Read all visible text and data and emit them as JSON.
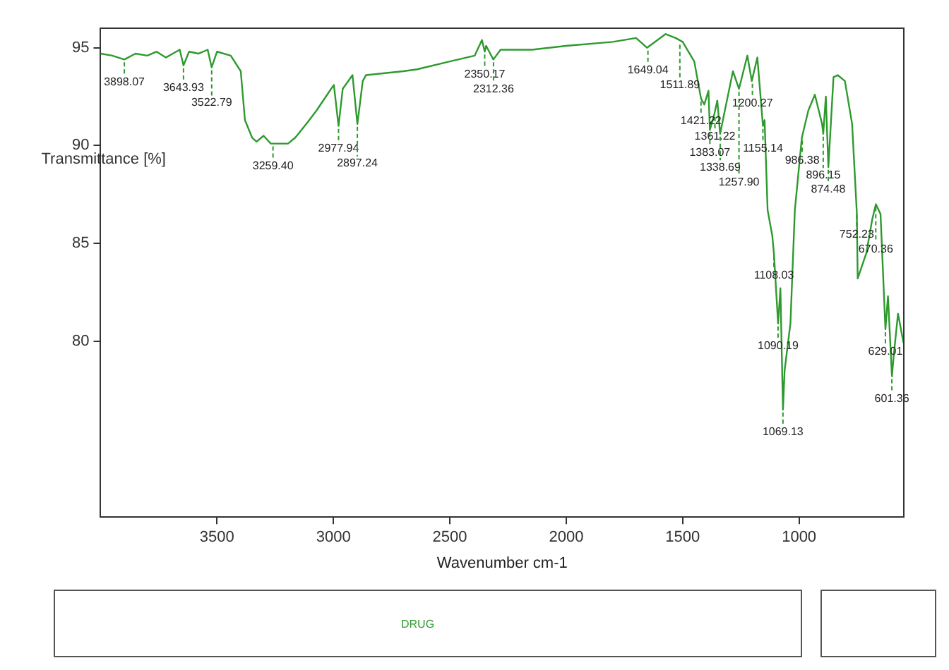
{
  "chart_data": {
    "type": "line",
    "xlabel": "Wavenumber cm-1",
    "ylabel": "Transmittance [%]",
    "xlim": [
      4000,
      550
    ],
    "xticks": [
      3500,
      3000,
      2500,
      2000,
      1500,
      1000
    ],
    "ylim": [
      71,
      96
    ],
    "yticks": [
      80,
      85,
      90,
      95
    ],
    "grid": false,
    "legend": "bottom",
    "marker": "none",
    "line_style": "solid",
    "series": [
      {
        "name": "DRUG",
        "color": "#2e9a2e",
        "x": [
          4000,
          3950,
          3898,
          3850,
          3800,
          3760,
          3720,
          3690,
          3660,
          3644,
          3620,
          3580,
          3540,
          3523,
          3500,
          3441,
          3398,
          3380,
          3349,
          3330,
          3300,
          3269,
          3230,
          3195,
          3164,
          3110,
          3072,
          3010,
          2998,
          2978,
          2960,
          2918,
          2897,
          2874,
          2860,
          2700,
          2640,
          2500,
          2393,
          2362,
          2350,
          2344,
          2313,
          2282,
          2146,
          2000,
          1800,
          1700,
          1653,
          1573,
          1530,
          1500,
          1450,
          1421,
          1407,
          1389,
          1383,
          1364,
          1351,
          1339,
          1327,
          1284,
          1258,
          1222,
          1203,
          1179,
          1155,
          1148,
          1135,
          1115,
          1108,
          1090,
          1080,
          1069,
          1062,
          1037,
          1018,
          988,
          960,
          932,
          901,
          896,
          885,
          874,
          852,
          834,
          803,
          772,
          752,
          748,
          711,
          686,
          670,
          650,
          629,
          618,
          601,
          593,
          575,
          551
        ],
        "values": [
          94.7,
          94.6,
          94.4,
          94.7,
          94.6,
          94.8,
          94.5,
          94.7,
          94.9,
          94.1,
          94.8,
          94.7,
          94.9,
          94.0,
          94.8,
          94.6,
          93.8,
          91.3,
          90.4,
          90.2,
          90.5,
          90.1,
          90.1,
          90.1,
          90.4,
          91.2,
          91.8,
          92.9,
          93.1,
          91.0,
          92.9,
          93.6,
          91.1,
          93.3,
          93.6,
          93.8,
          93.9,
          94.3,
          94.6,
          95.4,
          94.8,
          95.1,
          94.4,
          94.9,
          94.9,
          95.1,
          95.3,
          95.5,
          95.0,
          95.7,
          95.5,
          95.3,
          94.3,
          92.4,
          92.1,
          92.8,
          90.8,
          91.6,
          92.3,
          90.6,
          91.3,
          93.8,
          92.9,
          94.6,
          93.3,
          94.5,
          91.0,
          91.3,
          86.7,
          85.4,
          84.5,
          80.9,
          82.7,
          76.5,
          78.5,
          80.9,
          86.7,
          90.4,
          91.8,
          92.6,
          91.1,
          90.6,
          92.5,
          88.9,
          93.5,
          93.6,
          93.3,
          91.1,
          86.6,
          83.2,
          84.5,
          86.2,
          87.0,
          86.5,
          80.6,
          82.3,
          78.2,
          79.3,
          81.4,
          79.9
        ]
      }
    ],
    "annotations": [
      {
        "text": "3898.07",
        "x": 3898.07,
        "y": 94.4
      },
      {
        "text": "3643.93",
        "x": 3643.93,
        "y": 94.1
      },
      {
        "text": "3522.79",
        "x": 3522.79,
        "y": 94.0
      },
      {
        "text": "3259.40",
        "x": 3259.4,
        "y": 90.1
      },
      {
        "text": "2977.94",
        "x": 2977.94,
        "y": 91.0
      },
      {
        "text": "2897.24",
        "x": 2897.24,
        "y": 91.1
      },
      {
        "text": "2350.17",
        "x": 2350.17,
        "y": 94.8
      },
      {
        "text": "2312.36",
        "x": 2312.36,
        "y": 94.4
      },
      {
        "text": "1649.04",
        "x": 1649.04,
        "y": 95.0
      },
      {
        "text": "1511.89",
        "x": 1511.89,
        "y": 95.3
      },
      {
        "text": "1421.22",
        "x": 1421.22,
        "y": 92.4
      },
      {
        "text": "1383.07",
        "x": 1383.07,
        "y": 90.8
      },
      {
        "text": "1361.22",
        "x": 1361.22,
        "y": 91.6
      },
      {
        "text": "1338.69",
        "x": 1338.69,
        "y": 90.6
      },
      {
        "text": "1257.90",
        "x": 1257.9,
        "y": 92.9
      },
      {
        "text": "1200.27",
        "x": 1200.27,
        "y": 93.3
      },
      {
        "text": "1155.14",
        "x": 1155.14,
        "y": 91.0
      },
      {
        "text": "1108.03",
        "x": 1108.03,
        "y": 84.5
      },
      {
        "text": "1090.19",
        "x": 1090.19,
        "y": 80.9
      },
      {
        "text": "1069.13",
        "x": 1069.13,
        "y": 76.5
      },
      {
        "text": "986.38",
        "x": 986.38,
        "y": 90.4
      },
      {
        "text": "896.15",
        "x": 896.15,
        "y": 90.6
      },
      {
        "text": "874.48",
        "x": 874.48,
        "y": 88.9
      },
      {
        "text": "752.23",
        "x": 752.23,
        "y": 86.6
      },
      {
        "text": "670.36",
        "x": 670.36,
        "y": 87.0
      },
      {
        "text": "629.01",
        "x": 629.01,
        "y": 80.6
      },
      {
        "text": "601.36",
        "x": 601.36,
        "y": 78.2
      }
    ]
  }
}
